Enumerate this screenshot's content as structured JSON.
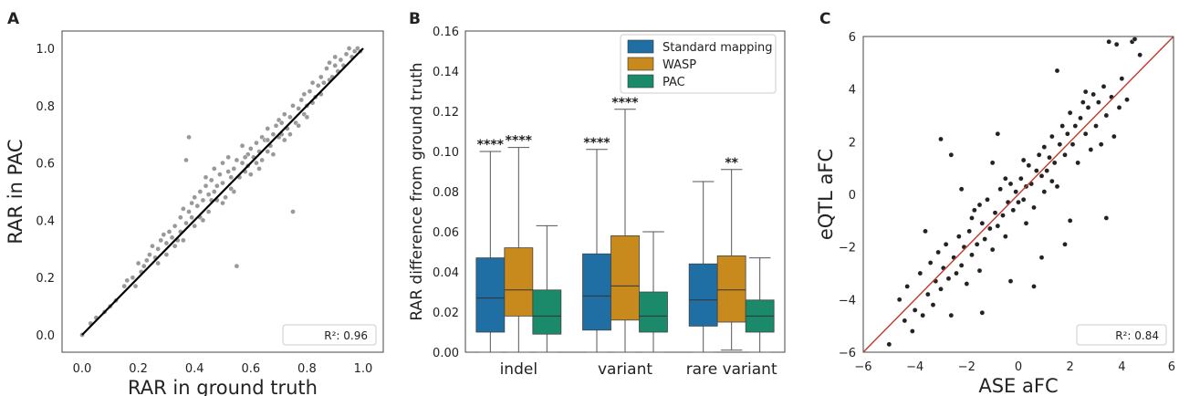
{
  "chart_data": [
    {
      "panel": "A",
      "type": "scatter",
      "xlabel": "RAR in ground truth",
      "ylabel": "RAR in PAC",
      "xlim": [
        0.0,
        1.0
      ],
      "ylim": [
        0.0,
        1.0
      ],
      "xticks": [
        "0.0",
        "0.2",
        "0.4",
        "0.6",
        "0.8",
        "1.0"
      ],
      "yticks": [
        "0.0",
        "0.2",
        "0.4",
        "0.6",
        "0.8",
        "1.0"
      ],
      "annotation": "R²: 0.96",
      "r2": 0.96,
      "line": {
        "x": [
          0.0,
          1.0
        ],
        "y": [
          0.0,
          1.0
        ]
      },
      "points": [
        [
          0.0,
          0.0
        ],
        [
          0.03,
          0.04
        ],
        [
          0.05,
          0.06
        ],
        [
          0.08,
          0.08
        ],
        [
          0.1,
          0.1
        ],
        [
          0.12,
          0.12
        ],
        [
          0.15,
          0.17
        ],
        [
          0.16,
          0.19
        ],
        [
          0.18,
          0.2
        ],
        [
          0.19,
          0.17
        ],
        [
          0.2,
          0.25
        ],
        [
          0.21,
          0.22
        ],
        [
          0.22,
          0.24
        ],
        [
          0.23,
          0.26
        ],
        [
          0.24,
          0.28
        ],
        [
          0.25,
          0.31
        ],
        [
          0.26,
          0.27
        ],
        [
          0.27,
          0.3
        ],
        [
          0.28,
          0.33
        ],
        [
          0.29,
          0.35
        ],
        [
          0.3,
          0.32
        ],
        [
          0.3,
          0.28
        ],
        [
          0.31,
          0.36
        ],
        [
          0.32,
          0.34
        ],
        [
          0.33,
          0.38
        ],
        [
          0.34,
          0.33
        ],
        [
          0.35,
          0.41
        ],
        [
          0.35,
          0.36
        ],
        [
          0.36,
          0.44
        ],
        [
          0.37,
          0.39
        ],
        [
          0.37,
          0.61
        ],
        [
          0.38,
          0.43
        ],
        [
          0.38,
          0.69
        ],
        [
          0.39,
          0.46
        ],
        [
          0.4,
          0.38
        ],
        [
          0.4,
          0.48
        ],
        [
          0.41,
          0.45
        ],
        [
          0.42,
          0.5
        ],
        [
          0.42,
          0.41
        ],
        [
          0.43,
          0.47
        ],
        [
          0.44,
          0.52
        ],
        [
          0.44,
          0.55
        ],
        [
          0.45,
          0.49
        ],
        [
          0.45,
          0.43
        ],
        [
          0.46,
          0.54
        ],
        [
          0.47,
          0.5
        ],
        [
          0.47,
          0.58
        ],
        [
          0.48,
          0.52
        ],
        [
          0.48,
          0.47
        ],
        [
          0.49,
          0.56
        ],
        [
          0.5,
          0.53
        ],
        [
          0.5,
          0.6
        ],
        [
          0.51,
          0.48
        ],
        [
          0.52,
          0.57
        ],
        [
          0.52,
          0.62
        ],
        [
          0.53,
          0.55
        ],
        [
          0.54,
          0.58
        ],
        [
          0.54,
          0.5
        ],
        [
          0.55,
          0.24
        ],
        [
          0.55,
          0.61
        ],
        [
          0.56,
          0.55
        ],
        [
          0.57,
          0.6
        ],
        [
          0.57,
          0.66
        ],
        [
          0.58,
          0.57
        ],
        [
          0.59,
          0.63
        ],
        [
          0.59,
          0.59
        ],
        [
          0.6,
          0.65
        ],
        [
          0.6,
          0.56
        ],
        [
          0.61,
          0.62
        ],
        [
          0.62,
          0.67
        ],
        [
          0.62,
          0.6
        ],
        [
          0.63,
          0.64
        ],
        [
          0.64,
          0.69
        ],
        [
          0.64,
          0.61
        ],
        [
          0.65,
          0.68
        ],
        [
          0.66,
          0.64
        ],
        [
          0.66,
          0.72
        ],
        [
          0.67,
          0.66
        ],
        [
          0.68,
          0.7
        ],
        [
          0.68,
          0.63
        ],
        [
          0.69,
          0.73
        ],
        [
          0.7,
          0.69
        ],
        [
          0.7,
          0.75
        ],
        [
          0.71,
          0.7
        ],
        [
          0.72,
          0.68
        ],
        [
          0.72,
          0.77
        ],
        [
          0.73,
          0.72
        ],
        [
          0.74,
          0.76
        ],
        [
          0.74,
          0.7
        ],
        [
          0.75,
          0.8
        ],
        [
          0.75,
          0.43
        ],
        [
          0.76,
          0.74
        ],
        [
          0.77,
          0.79
        ],
        [
          0.77,
          0.73
        ],
        [
          0.78,
          0.82
        ],
        [
          0.79,
          0.77
        ],
        [
          0.79,
          0.84
        ],
        [
          0.8,
          0.8
        ],
        [
          0.8,
          0.76
        ],
        [
          0.81,
          0.85
        ],
        [
          0.82,
          0.81
        ],
        [
          0.82,
          0.88
        ],
        [
          0.83,
          0.83
        ],
        [
          0.84,
          0.87
        ],
        [
          0.85,
          0.9
        ],
        [
          0.85,
          0.84
        ],
        [
          0.86,
          0.88
        ],
        [
          0.87,
          0.93
        ],
        [
          0.88,
          0.89
        ],
        [
          0.88,
          0.95
        ],
        [
          0.89,
          0.9
        ],
        [
          0.9,
          0.94
        ],
        [
          0.9,
          0.97
        ],
        [
          0.91,
          0.92
        ],
        [
          0.92,
          0.96
        ],
        [
          0.93,
          0.94
        ],
        [
          0.94,
          0.98
        ],
        [
          0.95,
          1.0
        ],
        [
          0.96,
          0.97
        ],
        [
          0.97,
          0.99
        ],
        [
          0.98,
          1.0
        ],
        [
          0.99,
          0.99
        ],
        [
          0.36,
          0.33
        ],
        [
          0.43,
          0.4
        ],
        [
          0.5,
          0.46
        ],
        [
          0.58,
          0.62
        ],
        [
          0.63,
          0.58
        ],
        [
          0.46,
          0.47
        ],
        [
          0.53,
          0.51
        ],
        [
          0.66,
          0.68
        ],
        [
          0.71,
          0.74
        ],
        [
          0.39,
          0.41
        ],
        [
          0.33,
          0.31
        ],
        [
          0.27,
          0.25
        ]
      ]
    },
    {
      "panel": "B",
      "type": "box",
      "categories": [
        "indel",
        "variant",
        "rare variant"
      ],
      "ylabel": "RAR difference from ground truth",
      "ylim": [
        0.0,
        0.16
      ],
      "yticks": [
        "0.00",
        "0.02",
        "0.04",
        "0.06",
        "0.08",
        "0.10",
        "0.12",
        "0.14",
        "0.16"
      ],
      "legend": {
        "position": "top-right"
      },
      "series": [
        {
          "name": "Standard mapping",
          "color": "#1f6fa4",
          "boxes": [
            {
              "min": 0.0,
              "q1": 0.01,
              "median": 0.027,
              "q3": 0.047,
              "max": 0.1,
              "sig": "****"
            },
            {
              "min": 0.0,
              "q1": 0.011,
              "median": 0.028,
              "q3": 0.049,
              "max": 0.101,
              "sig": "****"
            },
            {
              "min": 0.0,
              "q1": 0.013,
              "median": 0.026,
              "q3": 0.044,
              "max": 0.085,
              "sig": ""
            }
          ]
        },
        {
          "name": "WASP",
          "color": "#c8891d",
          "boxes": [
            {
              "min": 0.0,
              "q1": 0.018,
              "median": 0.031,
              "q3": 0.052,
              "max": 0.102,
              "sig": "****"
            },
            {
              "min": 0.0,
              "q1": 0.016,
              "median": 0.033,
              "q3": 0.058,
              "max": 0.121,
              "sig": "****"
            },
            {
              "min": 0.001,
              "q1": 0.015,
              "median": 0.031,
              "q3": 0.048,
              "max": 0.091,
              "sig": "**"
            }
          ]
        },
        {
          "name": "PAC",
          "color": "#1a8a6a",
          "boxes": [
            {
              "min": 0.0,
              "q1": 0.009,
              "median": 0.018,
              "q3": 0.031,
              "max": 0.063,
              "sig": ""
            },
            {
              "min": 0.0,
              "q1": 0.01,
              "median": 0.018,
              "q3": 0.03,
              "max": 0.06,
              "sig": ""
            },
            {
              "min": 0.0,
              "q1": 0.01,
              "median": 0.018,
              "q3": 0.026,
              "max": 0.047,
              "sig": ""
            }
          ]
        }
      ]
    },
    {
      "panel": "C",
      "type": "scatter",
      "xlabel": "ASE aFC",
      "ylabel": "eQTL aFC",
      "xlim": [
        -6,
        6
      ],
      "ylim": [
        -6,
        6
      ],
      "xticks": [
        "−6",
        "−4",
        "−2",
        "0",
        "2",
        "4",
        "6"
      ],
      "yticks": [
        "−6",
        "−4",
        "−2",
        "0",
        "2",
        "4",
        "6"
      ],
      "annotation": "R²: 0.84",
      "r2": 0.84,
      "line": {
        "x": [
          -6,
          6
        ],
        "y": [
          -6,
          6
        ],
        "color": "#c0392b"
      },
      "points": [
        [
          -5.0,
          -5.7
        ],
        [
          -4.6,
          -4.0
        ],
        [
          -4.4,
          -4.8
        ],
        [
          -4.3,
          -3.5
        ],
        [
          -4.1,
          -5.2
        ],
        [
          -4.0,
          -4.4
        ],
        [
          -3.8,
          -3.0
        ],
        [
          -3.7,
          -4.6
        ],
        [
          -3.6,
          -1.4
        ],
        [
          -3.5,
          -3.8
        ],
        [
          -3.4,
          -2.6
        ],
        [
          -3.3,
          -4.2
        ],
        [
          -3.2,
          -3.3
        ],
        [
          -3.1,
          -2.2
        ],
        [
          -3.0,
          -3.6
        ],
        [
          -2.9,
          -2.8
        ],
        [
          -2.8,
          -1.9
        ],
        [
          -2.7,
          -3.2
        ],
        [
          -2.6,
          -4.6
        ],
        [
          -2.5,
          -2.4
        ],
        [
          -2.4,
          -3.0
        ],
        [
          -2.3,
          -1.6
        ],
        [
          -2.2,
          -2.7
        ],
        [
          -2.1,
          -2.0
        ],
        [
          -2.0,
          -3.4
        ],
        [
          -1.9,
          -1.4
        ],
        [
          -1.8,
          -2.3
        ],
        [
          -1.7,
          -0.6
        ],
        [
          -1.6,
          -1.9
        ],
        [
          -1.5,
          -2.9
        ],
        [
          -1.4,
          -1.1
        ],
        [
          -1.3,
          -1.7
        ],
        [
          -1.2,
          -0.2
        ],
        [
          -1.1,
          -1.3
        ],
        [
          -1.0,
          -2.1
        ],
        [
          -0.9,
          -0.7
        ],
        [
          -0.8,
          -1.2
        ],
        [
          -0.7,
          0.2
        ],
        [
          -0.6,
          -0.8
        ],
        [
          -0.5,
          -1.6
        ],
        [
          -0.4,
          -0.3
        ],
        [
          -0.3,
          0.4
        ],
        [
          -0.2,
          -0.6
        ],
        [
          -0.1,
          0.1
        ],
        [
          0.0,
          -0.3
        ],
        [
          0.1,
          0.6
        ],
        [
          0.2,
          -0.2
        ],
        [
          0.3,
          0.3
        ],
        [
          0.4,
          1.1
        ],
        [
          0.5,
          0.4
        ],
        [
          0.6,
          -0.5
        ],
        [
          0.7,
          0.9
        ],
        [
          0.8,
          1.5
        ],
        [
          0.9,
          0.7
        ],
        [
          1.0,
          1.8
        ],
        [
          1.1,
          0.9
        ],
        [
          1.2,
          1.4
        ],
        [
          1.3,
          2.2
        ],
        [
          1.4,
          1.2
        ],
        [
          1.5,
          0.3
        ],
        [
          1.6,
          1.9
        ],
        [
          1.7,
          2.6
        ],
        [
          1.8,
          1.5
        ],
        [
          1.9,
          2.3
        ],
        [
          2.0,
          3.1
        ],
        [
          2.1,
          1.9
        ],
        [
          2.2,
          2.6
        ],
        [
          2.3,
          1.2
        ],
        [
          2.4,
          2.9
        ],
        [
          2.5,
          3.5
        ],
        [
          2.6,
          2.3
        ],
        [
          2.7,
          3.3
        ],
        [
          2.8,
          1.7
        ],
        [
          2.9,
          3.8
        ],
        [
          3.0,
          2.6
        ],
        [
          3.1,
          3.5
        ],
        [
          3.2,
          1.9
        ],
        [
          3.3,
          4.1
        ],
        [
          3.4,
          3.0
        ],
        [
          3.5,
          5.8
        ],
        [
          3.6,
          3.7
        ],
        [
          3.7,
          2.2
        ],
        [
          3.8,
          5.7
        ],
        [
          3.9,
          3.3
        ],
        [
          4.0,
          4.4
        ],
        [
          4.2,
          3.6
        ],
        [
          4.4,
          5.8
        ],
        [
          4.5,
          5.9
        ],
        [
          4.7,
          5.3
        ],
        [
          -3.0,
          2.1
        ],
        [
          -2.2,
          0.2
        ],
        [
          -1.4,
          -4.5
        ],
        [
          -0.3,
          -3.3
        ],
        [
          0.6,
          -3.5
        ],
        [
          1.5,
          4.7
        ],
        [
          2.0,
          -1.0
        ],
        [
          3.4,
          -0.9
        ],
        [
          -2.6,
          1.5
        ],
        [
          -1.0,
          1.2
        ],
        [
          0.9,
          -2.4
        ],
        [
          1.8,
          -1.9
        ],
        [
          2.6,
          3.9
        ],
        [
          -0.8,
          2.3
        ],
        [
          -1.8,
          -0.9
        ],
        [
          0.3,
          -1.1
        ],
        [
          1.0,
          0.1
        ],
        [
          -0.5,
          0.6
        ],
        [
          0.2,
          1.3
        ],
        [
          1.3,
          0.5
        ],
        [
          -1.5,
          -0.4
        ]
      ]
    }
  ]
}
